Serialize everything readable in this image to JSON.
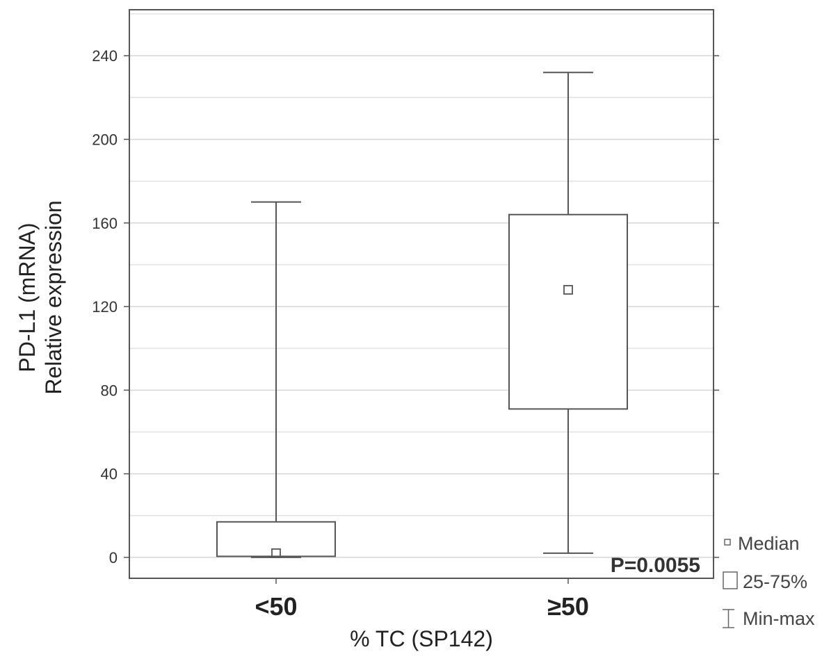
{
  "chart_data": {
    "type": "box",
    "ylabel_lines": [
      "PD-L1 (mRNA)",
      "Relative expression"
    ],
    "xlabel": "% TC (SP142)",
    "ylim": [
      -10,
      262
    ],
    "yticks": [
      0,
      40,
      80,
      120,
      160,
      200,
      240
    ],
    "minor_gridlines": [
      20,
      60,
      100,
      140,
      180,
      220,
      260
    ],
    "grid": true,
    "categories": [
      "<50",
      "≥50"
    ],
    "boxes": [
      {
        "category": "<50",
        "min": 0,
        "q1": 0.5,
        "median": 2,
        "q3": 17,
        "max": 170
      },
      {
        "category": "≥50",
        "min": 2,
        "q1": 71,
        "median": 128,
        "q3": 164,
        "max": 232
      }
    ],
    "annotation": "P=0.0055",
    "legend": {
      "position": "right-bottom",
      "entries": [
        {
          "symbol": "median",
          "label": "Median"
        },
        {
          "symbol": "box",
          "label": "25-75%"
        },
        {
          "symbol": "whisker",
          "label": "Min-max"
        }
      ]
    }
  }
}
